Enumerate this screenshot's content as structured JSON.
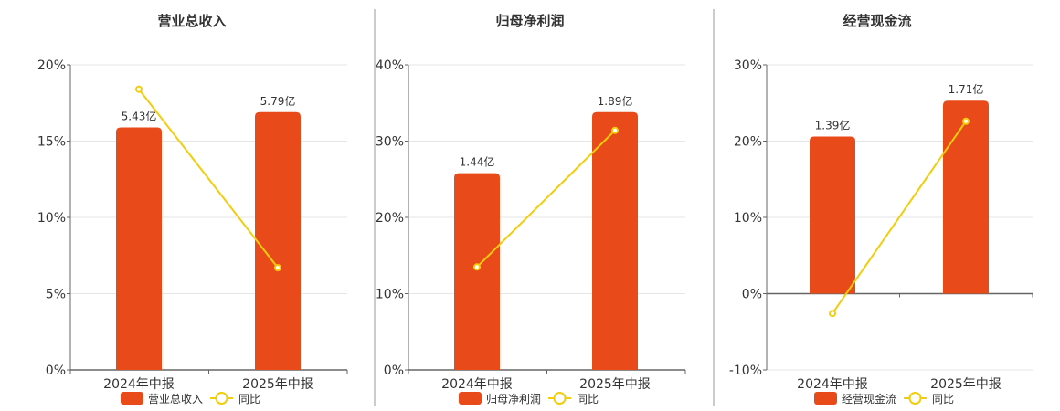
{
  "colors": {
    "bar": "#e84a1a",
    "line": "#f2cd0c",
    "grid": "#e6e6e6",
    "axis": "#666666",
    "divider": "#999999"
  },
  "chart_data": [
    {
      "type": "bar+line",
      "title": "营业总收入",
      "categories": [
        "2024年中报",
        "2025年中报"
      ],
      "series": [
        {
          "name": "营业总收入",
          "type": "bar",
          "values": [
            5.43,
            5.79
          ],
          "labels": [
            "5.43亿",
            "5.79亿"
          ],
          "percent_values": [
            15.9,
            16.9
          ]
        },
        {
          "name": "同比",
          "type": "line",
          "values": [
            18.4,
            6.7
          ]
        }
      ],
      "yaxis": {
        "min": 0,
        "max": 20,
        "ticks": [
          "0%",
          "5%",
          "10%",
          "15%",
          "20%"
        ]
      },
      "legend": "bottom"
    },
    {
      "type": "bar+line",
      "title": "归母净利润",
      "categories": [
        "2024年中报",
        "2025年中报"
      ],
      "series": [
        {
          "name": "归母净利润",
          "type": "bar",
          "values": [
            1.44,
            1.89
          ],
          "labels": [
            "1.44亿",
            "1.89亿"
          ],
          "percent_values": [
            25.8,
            33.8
          ]
        },
        {
          "name": "同比",
          "type": "line",
          "values": [
            13.5,
            31.4
          ]
        }
      ],
      "yaxis": {
        "min": 0,
        "max": 40,
        "ticks": [
          "0%",
          "10%",
          "20%",
          "30%",
          "40%"
        ]
      },
      "legend": "bottom"
    },
    {
      "type": "bar+line",
      "title": "经营现金流",
      "categories": [
        "2024年中报",
        "2025年中报"
      ],
      "series": [
        {
          "name": "经营现金流",
          "type": "bar",
          "values": [
            1.39,
            1.71
          ],
          "labels": [
            "1.39亿",
            "1.71亿"
          ],
          "percent_values": [
            20.6,
            25.3
          ]
        },
        {
          "name": "同比",
          "type": "line",
          "values": [
            -2.6,
            22.6
          ]
        }
      ],
      "yaxis": {
        "min": -10,
        "max": 30,
        "ticks": [
          "-10%",
          "0%",
          "10%",
          "20%",
          "30%"
        ]
      },
      "legend": "bottom"
    }
  ]
}
